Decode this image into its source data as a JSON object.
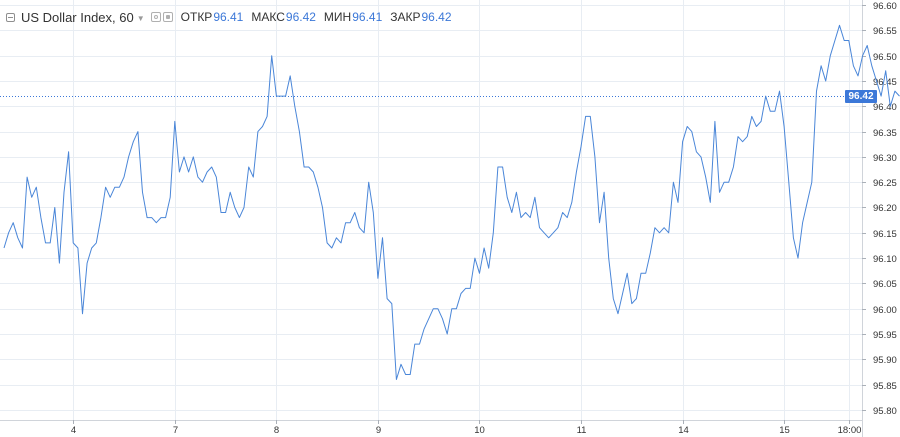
{
  "header": {
    "title": "US Dollar Index, 60",
    "ohlc": [
      {
        "label": "ОТКР",
        "value": "96.41"
      },
      {
        "label": "МАКС",
        "value": "96.42"
      },
      {
        "label": "МИН",
        "value": "96.41"
      },
      {
        "label": "ЗАКР",
        "value": "96.42"
      }
    ]
  },
  "colors": {
    "line": "#4a86d8",
    "grid": "#e8edf3",
    "axis_text": "#333333",
    "last_price": "#3c78d8"
  },
  "chart_data": {
    "type": "line",
    "title": "US Dollar Index, 60",
    "xlabel": "",
    "ylabel": "",
    "ylim": [
      95.78,
      96.61
    ],
    "y_ticks": [
      "96.60",
      "96.55",
      "96.50",
      "96.45",
      "96.40",
      "96.35",
      "96.30",
      "96.25",
      "96.20",
      "96.15",
      "96.10",
      "96.05",
      "96.00",
      "95.95",
      "95.90",
      "95.85",
      "95.80"
    ],
    "x_ticks": [
      {
        "label": "4",
        "index": 15
      },
      {
        "label": "7",
        "index": 37
      },
      {
        "label": "8",
        "index": 59
      },
      {
        "label": "9",
        "index": 81
      },
      {
        "label": "10",
        "index": 103
      },
      {
        "label": "11",
        "index": 125
      },
      {
        "label": "14",
        "index": 147
      },
      {
        "label": "15",
        "index": 169
      },
      {
        "label": "18:00",
        "index": 183
      }
    ],
    "x_max_index": 185,
    "grid": true,
    "last_price": "96.42",
    "series": [
      {
        "values": [
          96.12,
          96.15,
          96.17,
          96.14,
          96.12,
          96.26,
          96.22,
          96.24,
          96.18,
          96.13,
          96.13,
          96.2,
          96.09,
          96.23,
          96.31,
          96.13,
          96.12,
          95.99,
          96.09,
          96.12,
          96.13,
          96.18,
          96.24,
          96.22,
          96.24,
          96.24,
          96.26,
          96.3,
          96.33,
          96.35,
          96.23,
          96.18,
          96.18,
          96.17,
          96.18,
          96.18,
          96.22,
          96.37,
          96.27,
          96.3,
          96.27,
          96.3,
          96.26,
          96.25,
          96.27,
          96.28,
          96.26,
          96.19,
          96.19,
          96.23,
          96.2,
          96.18,
          96.2,
          96.28,
          96.26,
          96.35,
          96.36,
          96.38,
          96.5,
          96.42,
          96.42,
          96.42,
          96.46,
          96.4,
          96.35,
          96.28,
          96.28,
          96.27,
          96.24,
          96.2,
          96.13,
          96.12,
          96.14,
          96.13,
          96.17,
          96.17,
          96.19,
          96.16,
          96.15,
          96.25,
          96.19,
          96.06,
          96.14,
          96.02,
          96.01,
          95.86,
          95.89,
          95.87,
          95.87,
          95.93,
          95.93,
          95.96,
          95.98,
          96.0,
          96.0,
          95.98,
          95.95,
          96.0,
          96.0,
          96.03,
          96.04,
          96.04,
          96.1,
          96.07,
          96.12,
          96.08,
          96.15,
          96.28,
          96.28,
          96.22,
          96.19,
          96.23,
          96.18,
          96.19,
          96.18,
          96.22,
          96.16,
          96.15,
          96.14,
          96.15,
          96.16,
          96.19,
          96.18,
          96.21,
          96.27,
          96.32,
          96.38,
          96.38,
          96.3,
          96.17,
          96.23,
          96.1,
          96.02,
          95.99,
          96.03,
          96.07,
          96.01,
          96.02,
          96.07,
          96.07,
          96.11,
          96.16,
          96.15,
          96.16,
          96.15,
          96.25,
          96.21,
          96.33,
          96.36,
          96.35,
          96.31,
          96.3,
          96.26,
          96.21,
          96.37,
          96.23,
          96.25,
          96.25,
          96.28,
          96.34,
          96.33,
          96.34,
          96.38,
          96.36,
          96.37,
          96.42,
          96.39,
          96.39,
          96.43,
          96.36,
          96.25,
          96.14,
          96.1,
          96.17,
          96.21,
          96.25,
          96.43,
          96.48,
          96.45,
          96.5,
          96.53,
          96.56,
          96.53,
          96.53,
          96.48,
          96.46,
          96.5,
          96.52,
          96.48,
          96.45,
          96.42,
          96.47,
          96.4,
          96.43,
          96.42
        ]
      }
    ]
  }
}
